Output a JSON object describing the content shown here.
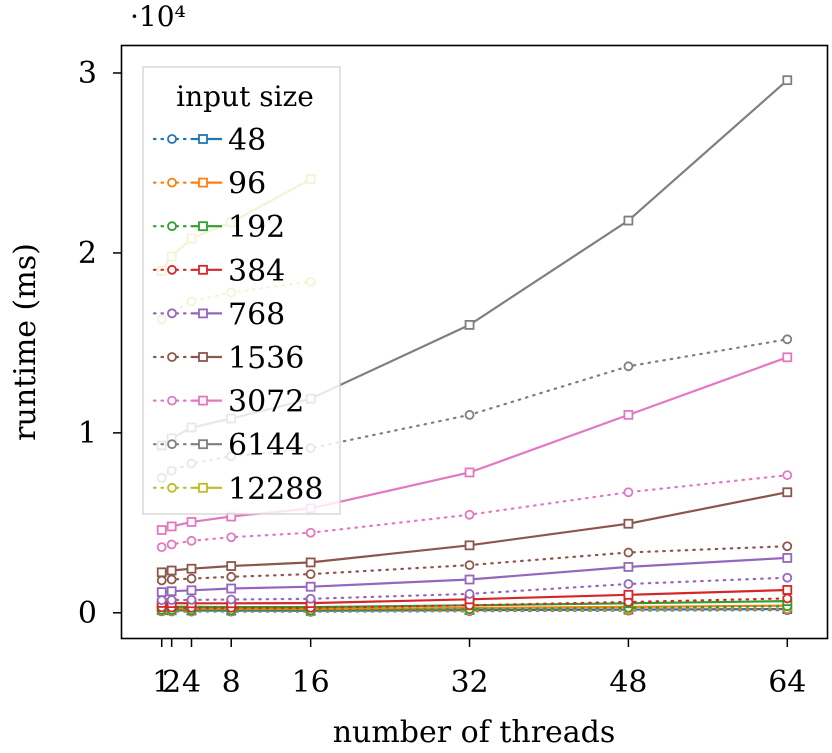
{
  "chart_data": {
    "type": "line",
    "title": "",
    "xlabel": "number of threads",
    "ylabel": "runtime (ms)",
    "y_multiplier_label": "·10⁴",
    "x_ticks": [
      1,
      2,
      4,
      8,
      16,
      32,
      48,
      64
    ],
    "y_ticks": [
      0,
      1,
      2,
      3
    ],
    "xlim": [
      -3,
      68
    ],
    "ylim": [
      -1400,
      31500
    ],
    "grid": false,
    "legend": {
      "title": "input size",
      "placement": "top-left"
    },
    "x": [
      1,
      2,
      4,
      8,
      16,
      32,
      48,
      64
    ],
    "series": [
      {
        "name": "48",
        "color": "#1f77b4",
        "circle": [
          80,
          75,
          70,
          65,
          60,
          90,
          120,
          150
        ],
        "square": [
          150,
          140,
          130,
          120,
          110,
          150,
          180,
          210
        ]
      },
      {
        "name": "96",
        "color": "#ff7f0e",
        "circle": [
          110,
          100,
          95,
          90,
          85,
          120,
          160,
          200
        ],
        "square": [
          250,
          240,
          230,
          220,
          210,
          270,
          330,
          400
        ]
      },
      {
        "name": "192",
        "color": "#2ca02c",
        "circle": [
          160,
          150,
          140,
          135,
          130,
          200,
          280,
          360
        ],
        "square": [
          350,
          340,
          330,
          320,
          320,
          420,
          530,
          650
        ]
      },
      {
        "name": "384",
        "color": "#d62728",
        "circle": [
          300,
          290,
          280,
          280,
          280,
          420,
          600,
          800
        ],
        "square": [
          550,
          540,
          530,
          530,
          540,
          750,
          1000,
          1270
        ]
      },
      {
        "name": "768",
        "color": "#9467bd",
        "circle": [
          700,
          710,
          720,
          740,
          780,
          1050,
          1600,
          1950
        ],
        "square": [
          1150,
          1200,
          1250,
          1350,
          1450,
          1850,
          2550,
          3050
        ]
      },
      {
        "name": "1536",
        "color": "#8c564b",
        "circle": [
          1800,
          1850,
          1900,
          2000,
          2150,
          2650,
          3350,
          3700
        ],
        "square": [
          2250,
          2350,
          2450,
          2600,
          2800,
          3750,
          4950,
          6700
        ]
      },
      {
        "name": "3072",
        "color": "#e377c2",
        "circle": [
          3650,
          3800,
          4000,
          4200,
          4450,
          5450,
          6700,
          7650
        ],
        "square": [
          4600,
          4800,
          5050,
          5350,
          5800,
          7800,
          11000,
          14200
        ]
      },
      {
        "name": "6144",
        "color": "#7f7f7f",
        "circle": [
          7500,
          7900,
          8300,
          8700,
          9150,
          11000,
          13700,
          15200
        ],
        "square": [
          9300,
          9700,
          10300,
          10800,
          11900,
          16000,
          21800,
          29600
        ]
      },
      {
        "name": "12288",
        "color": "#bcbd22",
        "circle": [
          16300,
          16700,
          17300,
          17800,
          18400
        ],
        "square": [
          19000,
          19800,
          20800,
          21700,
          24100
        ]
      }
    ]
  }
}
